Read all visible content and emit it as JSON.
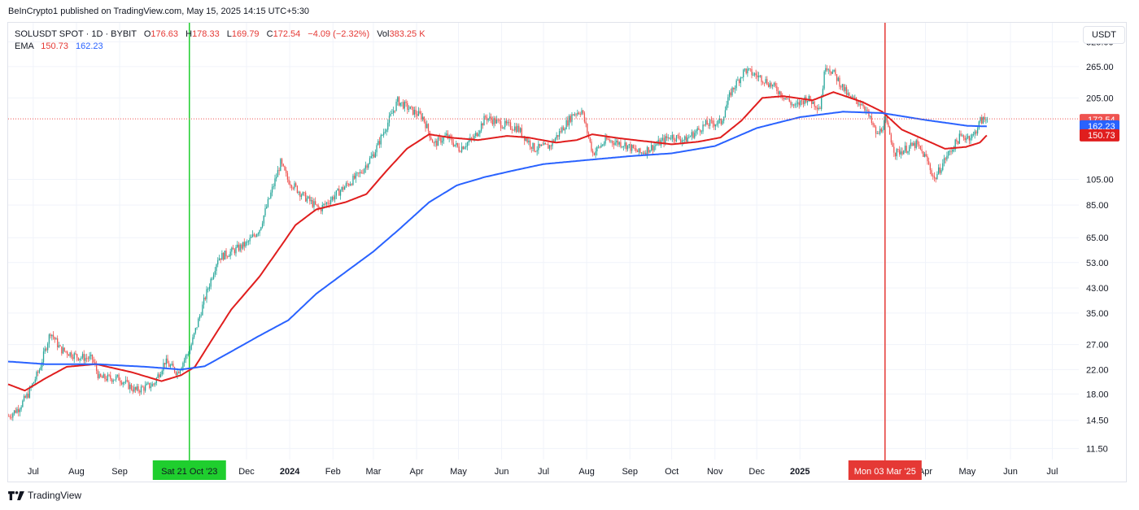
{
  "header": {
    "publisher_text": "BeInCrypto1 published on TradingView.com, May 15, 2025 14:15 UTC+5:30"
  },
  "legend": {
    "symbol": "SOLUSDT SPOT · 1D · BYBIT",
    "open_label": "O",
    "open": "176.63",
    "high_label": "H",
    "high": "178.33",
    "low_label": "L",
    "low": "169.79",
    "close_label": "C",
    "close": "172.54",
    "change": "−4.09 (−2.32%)",
    "vol_label": "Vol",
    "vol": "383.25 K",
    "ema_label": "EMA",
    "ema1": "150.73",
    "ema2": "162.23"
  },
  "currency_button": "USDT",
  "branding": "TradingView",
  "colors": {
    "up": "#26a69a",
    "down": "#ef5350",
    "ema_red": "#e01e1e",
    "ema_blue": "#2962ff",
    "vline_green": "#1fce2e",
    "vline_red": "#e53935",
    "grid": "#f0f3fa"
  },
  "chart_data": {
    "type": "candlestick",
    "scale": "log",
    "x_range": [
      "2023-06-13",
      "2025-07-20"
    ],
    "y_range": [
      10.5,
      380
    ],
    "y_ticks": [
      325,
      265,
      205,
      105,
      85,
      65,
      53,
      43,
      35,
      27,
      22,
      18,
      14.5,
      11.5
    ],
    "y_tick_labels": [
      "325.00",
      "265.00",
      "205.00",
      "105.00",
      "85.00",
      "65.00",
      "53.00",
      "43.00",
      "35.00",
      "27.00",
      "22.00",
      "18.00",
      "14.50",
      "11.50"
    ],
    "x_ticks": [
      {
        "date": "2023-07-01",
        "label": "Jul",
        "bold": false
      },
      {
        "date": "2023-08-01",
        "label": "Aug",
        "bold": false
      },
      {
        "date": "2023-09-01",
        "label": "Sep",
        "bold": false
      },
      {
        "date": "2023-12-01",
        "label": "Dec",
        "bold": false
      },
      {
        "date": "2024-01-01",
        "label": "2024",
        "bold": true
      },
      {
        "date": "2024-02-01",
        "label": "Feb",
        "bold": false
      },
      {
        "date": "2024-03-01",
        "label": "Mar",
        "bold": false
      },
      {
        "date": "2024-04-01",
        "label": "Apr",
        "bold": false
      },
      {
        "date": "2024-05-01",
        "label": "May",
        "bold": false
      },
      {
        "date": "2024-06-01",
        "label": "Jun",
        "bold": false
      },
      {
        "date": "2024-07-01",
        "label": "Jul",
        "bold": false
      },
      {
        "date": "2024-08-01",
        "label": "Aug",
        "bold": false
      },
      {
        "date": "2024-09-01",
        "label": "Sep",
        "bold": false
      },
      {
        "date": "2024-10-01",
        "label": "Oct",
        "bold": false
      },
      {
        "date": "2024-11-01",
        "label": "Nov",
        "bold": false
      },
      {
        "date": "2024-12-01",
        "label": "Dec",
        "bold": false
      },
      {
        "date": "2025-01-01",
        "label": "2025",
        "bold": true
      },
      {
        "date": "2025-04-01",
        "label": "Apr",
        "bold": false
      },
      {
        "date": "2025-05-01",
        "label": "May",
        "bold": false
      },
      {
        "date": "2025-06-01",
        "label": "Jun",
        "bold": false
      },
      {
        "date": "2025-07-01",
        "label": "Jul",
        "bold": false
      }
    ],
    "vertical_markers": [
      {
        "date": "2023-10-21",
        "label": "Sat 21 Oct '23",
        "color": "#1fce2e"
      },
      {
        "date": "2025-03-03",
        "label": "Mon 03 Mar '25",
        "color": "#e53935"
      }
    ],
    "last_price": {
      "value": 172.54,
      "label": "172.54",
      "countdown": "15:14:32"
    },
    "series": [
      {
        "name": "Price",
        "anchors": [
          [
            "2023-06-13",
            15
          ],
          [
            "2023-06-20",
            16
          ],
          [
            "2023-06-27",
            18
          ],
          [
            "2023-07-05",
            22
          ],
          [
            "2023-07-13",
            30
          ],
          [
            "2023-07-20",
            26
          ],
          [
            "2023-08-01",
            24.5
          ],
          [
            "2023-08-12",
            24
          ],
          [
            "2023-08-17",
            20.5
          ],
          [
            "2023-08-31",
            20.5
          ],
          [
            "2023-09-12",
            18.5
          ],
          [
            "2023-09-25",
            19.5
          ],
          [
            "2023-10-03",
            23.5
          ],
          [
            "2023-10-12",
            21.5
          ],
          [
            "2023-10-21",
            26
          ],
          [
            "2023-11-01",
            40
          ],
          [
            "2023-11-10",
            55
          ],
          [
            "2023-11-20",
            58
          ],
          [
            "2023-12-01",
            62
          ],
          [
            "2023-12-10",
            70
          ],
          [
            "2023-12-25",
            120
          ],
          [
            "2023-12-30",
            105
          ],
          [
            "2024-01-10",
            92
          ],
          [
            "2024-01-22",
            82
          ],
          [
            "2024-02-05",
            95
          ],
          [
            "2024-02-20",
            110
          ],
          [
            "2024-03-01",
            130
          ],
          [
            "2024-03-18",
            200
          ],
          [
            "2024-03-28",
            185
          ],
          [
            "2024-04-05",
            175
          ],
          [
            "2024-04-13",
            140
          ],
          [
            "2024-04-22",
            150
          ],
          [
            "2024-05-01",
            135
          ],
          [
            "2024-05-12",
            148
          ],
          [
            "2024-05-20",
            175
          ],
          [
            "2024-06-01",
            165
          ],
          [
            "2024-06-12",
            160
          ],
          [
            "2024-06-24",
            135
          ],
          [
            "2024-07-05",
            138
          ],
          [
            "2024-07-22",
            180
          ],
          [
            "2024-07-28",
            185
          ],
          [
            "2024-08-05",
            130
          ],
          [
            "2024-08-15",
            145
          ],
          [
            "2024-08-28",
            140
          ],
          [
            "2024-09-08",
            130
          ],
          [
            "2024-09-20",
            140
          ],
          [
            "2024-09-30",
            150
          ],
          [
            "2024-10-10",
            145
          ],
          [
            "2024-10-25",
            165
          ],
          [
            "2024-11-05",
            168
          ],
          [
            "2024-11-12",
            215
          ],
          [
            "2024-11-22",
            258
          ],
          [
            "2024-12-05",
            240
          ],
          [
            "2024-12-15",
            220
          ],
          [
            "2024-12-28",
            190
          ],
          [
            "2025-01-05",
            205
          ],
          [
            "2025-01-15",
            190
          ],
          [
            "2025-01-19",
            270
          ],
          [
            "2025-01-25",
            250
          ],
          [
            "2025-02-05",
            205
          ],
          [
            "2025-02-15",
            195
          ],
          [
            "2025-02-25",
            150
          ],
          [
            "2025-03-03",
            170
          ],
          [
            "2025-03-10",
            130
          ],
          [
            "2025-03-25",
            140
          ],
          [
            "2025-04-01",
            125
          ],
          [
            "2025-04-07",
            105
          ],
          [
            "2025-04-15",
            125
          ],
          [
            "2025-04-25",
            148
          ],
          [
            "2025-05-05",
            150
          ],
          [
            "2025-05-10",
            170
          ],
          [
            "2025-05-15",
            172.54
          ]
        ]
      },
      {
        "name": "EMA 150.73",
        "anchors": [
          [
            "2023-06-13",
            19.5
          ],
          [
            "2023-06-25",
            18.5
          ],
          [
            "2023-07-10",
            20.5
          ],
          [
            "2023-07-25",
            22.5
          ],
          [
            "2023-08-15",
            23
          ],
          [
            "2023-09-10",
            21.5
          ],
          [
            "2023-10-01",
            20
          ],
          [
            "2023-10-15",
            21
          ],
          [
            "2023-10-25",
            22.5
          ],
          [
            "2023-11-05",
            27.5
          ],
          [
            "2023-11-20",
            36
          ],
          [
            "2023-12-10",
            47
          ],
          [
            "2023-12-25",
            60
          ],
          [
            "2024-01-05",
            72
          ],
          [
            "2024-01-20",
            82
          ],
          [
            "2024-02-10",
            87
          ],
          [
            "2024-02-25",
            93
          ],
          [
            "2024-03-10",
            112
          ],
          [
            "2024-03-25",
            135
          ],
          [
            "2024-04-10",
            152
          ],
          [
            "2024-04-25",
            148
          ],
          [
            "2024-05-15",
            145
          ],
          [
            "2024-06-05",
            150
          ],
          [
            "2024-06-20",
            148
          ],
          [
            "2024-07-10",
            142
          ],
          [
            "2024-07-25",
            145
          ],
          [
            "2024-08-05",
            152
          ],
          [
            "2024-08-25",
            147
          ],
          [
            "2024-09-15",
            143
          ],
          [
            "2024-10-01",
            140
          ],
          [
            "2024-10-20",
            143
          ],
          [
            "2024-11-05",
            148
          ],
          [
            "2024-11-20",
            170
          ],
          [
            "2024-12-05",
            205
          ],
          [
            "2024-12-20",
            208
          ],
          [
            "2025-01-10",
            201
          ],
          [
            "2025-01-25",
            215
          ],
          [
            "2025-02-15",
            198
          ],
          [
            "2025-03-01",
            183
          ],
          [
            "2025-03-15",
            158
          ],
          [
            "2025-04-01",
            145
          ],
          [
            "2025-04-15",
            135
          ],
          [
            "2025-04-30",
            137
          ],
          [
            "2025-05-10",
            142
          ],
          [
            "2025-05-15",
            150.73
          ]
        ]
      },
      {
        "name": "EMA 162.23",
        "anchors": [
          [
            "2023-06-13",
            23.5
          ],
          [
            "2023-07-10",
            23
          ],
          [
            "2023-08-15",
            23
          ],
          [
            "2023-09-20",
            22.5
          ],
          [
            "2023-10-15",
            22
          ],
          [
            "2023-11-01",
            22.6
          ],
          [
            "2023-11-20",
            25.5
          ],
          [
            "2023-12-10",
            29
          ],
          [
            "2023-12-31",
            33
          ],
          [
            "2024-01-20",
            41
          ],
          [
            "2024-02-10",
            49
          ],
          [
            "2024-03-01",
            58
          ],
          [
            "2024-03-20",
            70
          ],
          [
            "2024-04-10",
            87
          ],
          [
            "2024-04-30",
            100
          ],
          [
            "2024-05-20",
            107
          ],
          [
            "2024-06-10",
            113
          ],
          [
            "2024-07-01",
            119
          ],
          [
            "2024-08-01",
            123
          ],
          [
            "2024-09-01",
            127
          ],
          [
            "2024-10-01",
            130
          ],
          [
            "2024-11-01",
            138
          ],
          [
            "2024-12-01",
            160
          ],
          [
            "2025-01-01",
            175
          ],
          [
            "2025-02-01",
            183
          ],
          [
            "2025-03-01",
            181
          ],
          [
            "2025-04-01",
            171
          ],
          [
            "2025-05-01",
            163
          ],
          [
            "2025-05-15",
            162.23
          ]
        ]
      }
    ]
  }
}
